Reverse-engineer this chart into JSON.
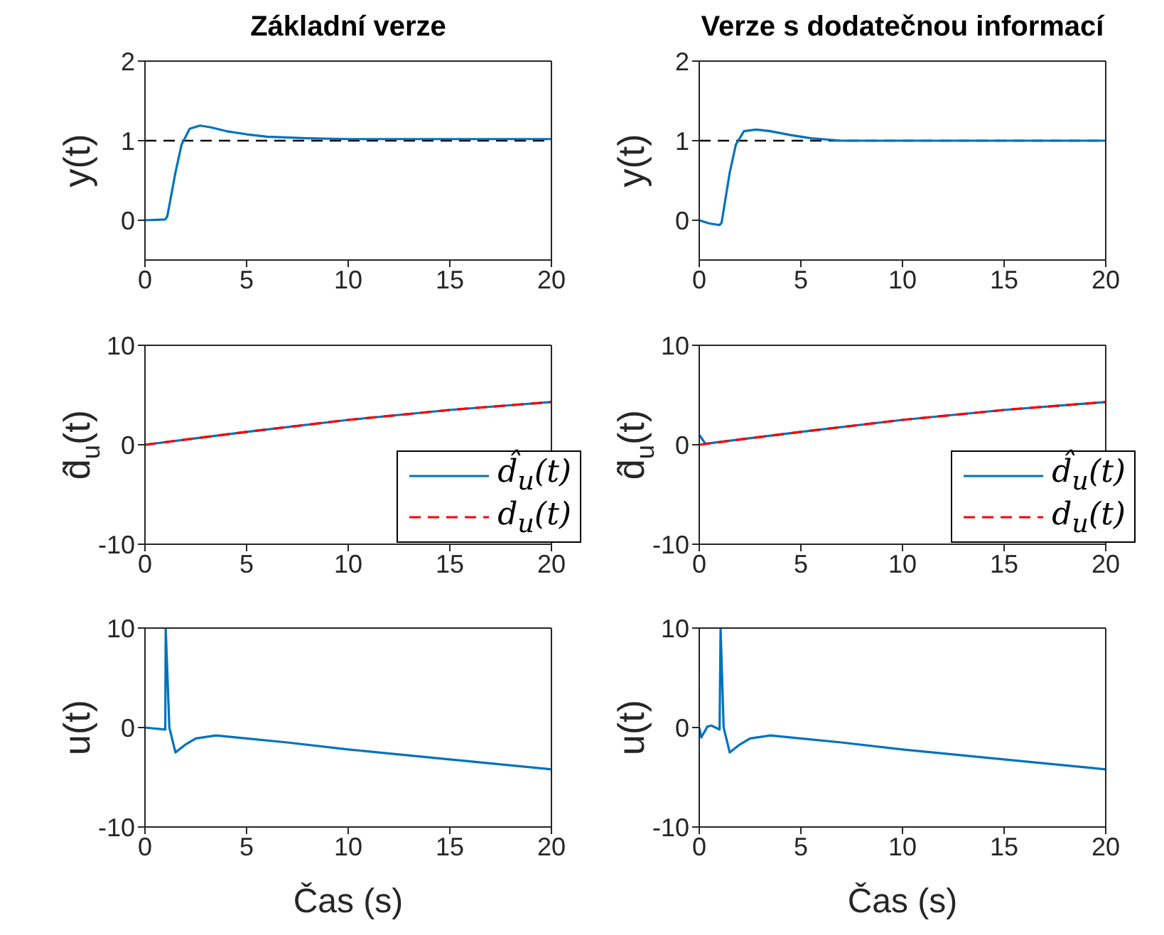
{
  "chart_data": [
    {
      "type": "line",
      "title": "Základní verze",
      "ylabel": "y(t)",
      "xlim": [
        0,
        20
      ],
      "xticks": [
        0,
        5,
        10,
        15,
        20
      ],
      "ylim": [
        -0.5,
        2
      ],
      "yticks": [
        0,
        1,
        2
      ],
      "marker": "none",
      "grid": false,
      "legend": false,
      "ref_lines": [
        {
          "axis": "y",
          "value": 1,
          "color": "#000000",
          "line_style": "dashed"
        }
      ],
      "series": [
        {
          "color": "#0072bd",
          "x": [
            0,
            1,
            1.1,
            1.5,
            1.8,
            2.2,
            2.7,
            3.2,
            4,
            5,
            6,
            8,
            10,
            15,
            20
          ],
          "values": [
            0,
            0.01,
            0.05,
            0.6,
            0.95,
            1.15,
            1.19,
            1.17,
            1.12,
            1.08,
            1.05,
            1.03,
            1.02,
            1.02,
            1.02
          ]
        }
      ]
    },
    {
      "type": "line",
      "title": "Verze s dodatečnou informací",
      "ylabel": "y(t)",
      "xlim": [
        0,
        20
      ],
      "xticks": [
        0,
        5,
        10,
        15,
        20
      ],
      "ylim": [
        -0.5,
        2
      ],
      "yticks": [
        0,
        1,
        2
      ],
      "marker": "none",
      "grid": false,
      "legend": false,
      "ref_lines": [
        {
          "axis": "y",
          "value": 1,
          "color": "#000000",
          "line_style": "dashed"
        }
      ],
      "series": [
        {
          "color": "#0072bd",
          "x": [
            0,
            0.5,
            1,
            1.1,
            1.5,
            1.8,
            2.2,
            2.8,
            3.5,
            4.5,
            5.5,
            7,
            10,
            20
          ],
          "values": [
            0,
            -0.04,
            -0.06,
            -0.03,
            0.6,
            0.95,
            1.12,
            1.14,
            1.12,
            1.07,
            1.03,
            1.0,
            1.0,
            1.0
          ]
        }
      ]
    },
    {
      "type": "line",
      "ylabel": "d̂$_{u}$(t)",
      "xlim": [
        0,
        20
      ],
      "xticks": [
        0,
        5,
        10,
        15,
        20
      ],
      "ylim": [
        -10,
        10
      ],
      "yticks": [
        -10,
        0,
        10
      ],
      "marker": "none",
      "grid": false,
      "legend": "bottom right",
      "series": [
        {
          "name": "d̂$_{u}$(t)",
          "color": "#0072bd",
          "line_style": "solid",
          "x": [
            0,
            5,
            10,
            15,
            20
          ],
          "values": [
            0,
            1.3,
            2.5,
            3.5,
            4.3
          ]
        },
        {
          "name": "d$_{u}$(t)",
          "color": "#ff0000",
          "line_style": "dashed",
          "x": [
            0,
            5,
            10,
            15,
            20
          ],
          "values": [
            0,
            1.3,
            2.5,
            3.5,
            4.3
          ]
        }
      ]
    },
    {
      "type": "line",
      "ylabel": "d̂$_{u}$(t)",
      "xlim": [
        0,
        20
      ],
      "xticks": [
        0,
        5,
        10,
        15,
        20
      ],
      "ylim": [
        -10,
        10
      ],
      "yticks": [
        -10,
        0,
        10
      ],
      "marker": "none",
      "grid": false,
      "legend": "bottom right",
      "series": [
        {
          "name": "d̂$_{u}$(t)",
          "color": "#0072bd",
          "line_style": "solid",
          "x": [
            0,
            0.3,
            5,
            10,
            15,
            20
          ],
          "values": [
            1.0,
            0.1,
            1.3,
            2.5,
            3.5,
            4.3
          ]
        },
        {
          "name": "d$_{u}$(t)",
          "color": "#ff0000",
          "line_style": "dashed",
          "x": [
            0,
            5,
            10,
            15,
            20
          ],
          "values": [
            0,
            1.3,
            2.5,
            3.5,
            4.3
          ]
        }
      ]
    },
    {
      "type": "line",
      "ylabel": "u(t)",
      "xlabel": "Čas (s)",
      "xlim": [
        0,
        20
      ],
      "xticks": [
        0,
        5,
        10,
        15,
        20
      ],
      "ylim": [
        -10,
        10
      ],
      "yticks": [
        -10,
        0,
        10
      ],
      "marker": "none",
      "grid": false,
      "legend": false,
      "series": [
        {
          "color": "#0072bd",
          "x": [
            0,
            1,
            1.02,
            1.2,
            1.5,
            2,
            2.5,
            3.5,
            5,
            7,
            10,
            15,
            20
          ],
          "values": [
            0,
            -0.2,
            10,
            0,
            -2.5,
            -1.7,
            -1.1,
            -0.8,
            -1.1,
            -1.5,
            -2.2,
            -3.2,
            -4.2
          ]
        }
      ]
    },
    {
      "type": "line",
      "ylabel": "u(t)",
      "xlabel": "Čas (s)",
      "xlim": [
        0,
        20
      ],
      "xticks": [
        0,
        5,
        10,
        15,
        20
      ],
      "ylim": [
        -10,
        10
      ],
      "yticks": [
        -10,
        0,
        10
      ],
      "marker": "none",
      "grid": false,
      "legend": false,
      "series": [
        {
          "color": "#0072bd",
          "x": [
            0,
            0.1,
            0.4,
            0.6,
            1,
            1.05,
            1.2,
            1.5,
            2,
            2.5,
            3.5,
            5,
            7,
            10,
            15,
            20
          ],
          "values": [
            0,
            -1,
            0.1,
            0.2,
            -0.2,
            10,
            0,
            -2.5,
            -1.7,
            -1.1,
            -0.8,
            -1.1,
            -1.5,
            -2.2,
            -3.2,
            -4.2
          ]
        }
      ]
    }
  ]
}
